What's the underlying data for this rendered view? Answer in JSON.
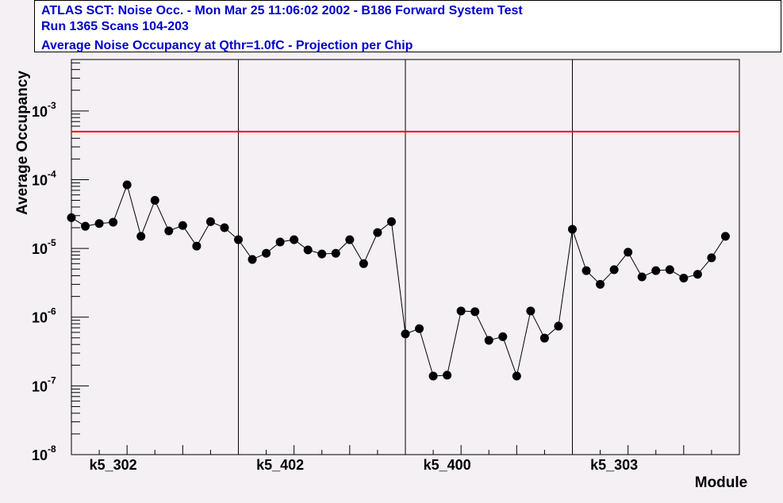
{
  "chart_data": {
    "type": "line",
    "title_lines": [
      "ATLAS SCT: Noise Occ.  -  Mon Mar 25 11:06:02 2002  -  B186 Forward System Test",
      "Run 1365   Scans 104-203",
      "Average Noise Occupancy at Qthr=1.0fC - Projection per Chip"
    ],
    "title_color": "#0000c8",
    "y_label": "Average Occupancy",
    "x_label": "Module",
    "log_y": true,
    "ylim": [
      1e-08,
      0.0056
    ],
    "yticks": [
      {
        "value": 1e-08,
        "label": "10",
        "exponent": "-8"
      },
      {
        "value": 1e-07,
        "label": "10",
        "exponent": "-7"
      },
      {
        "value": 1e-06,
        "label": "10",
        "exponent": "-6"
      },
      {
        "value": 1e-05,
        "label": "10",
        "exponent": "-5"
      },
      {
        "value": 0.0001,
        "label": "10",
        "exponent": "-4"
      },
      {
        "value": 0.001,
        "label": "10",
        "exponent": "-3"
      }
    ],
    "categories": [
      null,
      null,
      null,
      "k5_302",
      null,
      null,
      null,
      null,
      null,
      null,
      null,
      null,
      null,
      null,
      null,
      "k5_402",
      null,
      null,
      null,
      null,
      null,
      null,
      null,
      null,
      null,
      null,
      null,
      "k5_400",
      null,
      null,
      null,
      null,
      null,
      null,
      null,
      null,
      null,
      null,
      null,
      "k5_303",
      null,
      null,
      null,
      null,
      null,
      null,
      null,
      null
    ],
    "module_boundaries": [
      12,
      24,
      36
    ],
    "reference_line": {
      "value": 0.0005,
      "color": "#ff0000"
    },
    "color": "#000000",
    "values": [
      2.8e-05,
      2.1e-05,
      2.3e-05,
      2.4e-05,
      8.4e-05,
      1.5e-05,
      5e-05,
      1.8e-05,
      2.15e-05,
      1.08e-05,
      2.45e-05,
      2e-05,
      1.34e-05,
      6.9e-06,
      8.5e-06,
      1.24e-05,
      1.34e-05,
      9.5e-06,
      8.3e-06,
      8.5e-06,
      1.34e-05,
      6e-06,
      1.7e-05,
      2.45e-05,
      5.7e-07,
      6.8e-07,
      1.39e-07,
      1.43e-07,
      1.23e-06,
      1.2e-06,
      4.6e-07,
      5.2e-07,
      1.39e-07,
      1.23e-06,
      4.95e-07,
      7.4e-07,
      1.9e-05,
      4.75e-06,
      3e-06,
      4.9e-06,
      8.8e-06,
      3.85e-06,
      4.75e-06,
      4.9e-06,
      3.7e-06,
      4.2e-06,
      7.3e-06,
      1.5e-05
    ]
  }
}
